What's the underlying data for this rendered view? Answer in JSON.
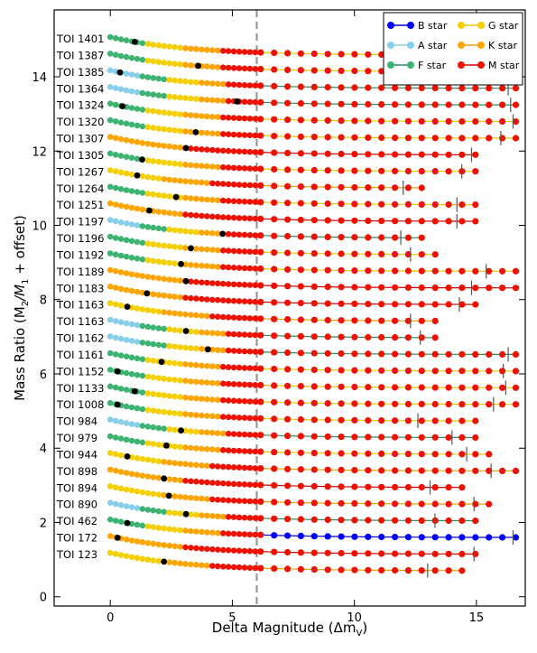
{
  "chart_data": {
    "type": "scatter",
    "xlabel": "Delta Magnitude (Δm",
    "xlabel_sub": "V",
    "xlabel_close": ")",
    "ylabel": "Mass Ratio (M",
    "ylabel_sub1": "2",
    "ylabel_mid": "/M",
    "ylabel_sub2": "1",
    "ylabel_close": " + offset)",
    "xlim": [
      -2.3,
      17
    ],
    "ylim": [
      -0.25,
      15.8
    ],
    "xticks": [
      0,
      5,
      10,
      15
    ],
    "yticks": [
      0,
      2,
      4,
      6,
      8,
      10,
      12,
      14
    ],
    "reference_line": {
      "x": 6,
      "style": "dashed",
      "color": "#999999"
    },
    "legend": {
      "placement": "top-right",
      "entries": [
        {
          "label": "B star",
          "color": "#0000ff",
          "line": "#0000cc"
        },
        {
          "label": "G star",
          "color": "#f5d000",
          "line": "#e8c800"
        },
        {
          "label": "A star",
          "color": "#87ceeb",
          "line": "#87ceeb"
        },
        {
          "label": "K star",
          "color": "#ffa500",
          "line": "#f0a000"
        },
        {
          "label": "F star",
          "color": "#3cb371",
          "line": "#2e8b57"
        },
        {
          "label": "M star",
          "color": "#ee1100",
          "line": "#cc0000"
        }
      ]
    },
    "spectral_colors": {
      "B": "#0000ff",
      "A": "#87ceeb",
      "F": "#3cb371",
      "G": "#f5d000",
      "K": "#ffa500",
      "M": "#ee1100"
    },
    "series": [
      {
        "name": "TOI 1401",
        "offset": 14.5,
        "start": "F",
        "x_end": 15.7,
        "x_mark": 14.2,
        "x_star": 1.0
      },
      {
        "name": "TOI 1387",
        "offset": 13.8,
        "start": "F",
        "x_end": 15.5,
        "x_mark": 14.8,
        "x_star": 3.6
      },
      {
        "name": "TOI 1385",
        "offset": 13.1,
        "start": "A",
        "x_end": 17.0,
        "x_mark": 16.3,
        "x_star": 0.4
      },
      {
        "name": "TOI 1364",
        "offset": 12.4,
        "start": "A",
        "x_end": 17.0,
        "x_mark": 16.4,
        "x_star": 5.2
      },
      {
        "name": "TOI 1324",
        "offset": 11.75,
        "start": "F",
        "x_end": 17.0,
        "x_mark": 16.5,
        "x_star": 0.5
      },
      {
        "name": "TOI 1320",
        "offset": 11.1,
        "start": "F",
        "x_end": 16.7,
        "x_mark": 16.0,
        "x_star": 3.5
      },
      {
        "name": "TOI 1307",
        "offset": 10.4,
        "start": "K",
        "x_end": 15.3,
        "x_mark": 14.8,
        "x_star": 3.1
      },
      {
        "name": "TOI 1305",
        "offset": 9.7,
        "start": "F",
        "x_end": 15.1,
        "x_mark": 14.4,
        "x_star": 1.3
      },
      {
        "name": "TOI 1267",
        "offset": 9.1,
        "start": "G",
        "x_end": 13.2,
        "x_mark": 12.0,
        "x_star": 1.1
      },
      {
        "name": "TOI 1264",
        "offset": 8.4,
        "start": "F",
        "x_end": 15.4,
        "x_mark": 14.2,
        "x_star": 2.7
      },
      {
        "name": "TOI 1251",
        "offset": 7.75,
        "start": "K",
        "x_end": 15.4,
        "x_mark": 14.2,
        "x_star": 1.6
      },
      {
        "name": "TOI 1197",
        "offset": 7.1,
        "start": "A",
        "x_end": 13.2,
        "x_mark": 11.9,
        "x_star": 4.6
      },
      {
        "name": "TOI 1196",
        "offset": 6.4,
        "start": "F",
        "x_end": 13.7,
        "x_mark": 12.3,
        "x_star": 3.3
      },
      {
        "name": "TOI 1192",
        "offset": 5.75,
        "start": "F",
        "x_end": 16.9,
        "x_mark": 15.4,
        "x_star": 2.9
      },
      {
        "name": "TOI 1189",
        "offset": 5.1,
        "start": "K",
        "x_end": 16.8,
        "x_mark": 14.8,
        "x_star": 3.1
      },
      {
        "name": "TOI 1183",
        "offset": 4.45,
        "start": "K",
        "x_end": 15.5,
        "x_mark": 14.3,
        "x_star": 1.5
      },
      {
        "name": "TOI 1163",
        "offset": 3.8,
        "start": "G",
        "x_end": 13.8,
        "x_mark": 12.3,
        "x_star": 0.7
      },
      {
        "name": "TOI 1163",
        "offset": 3.15,
        "start": "A",
        "x_end": 13.8,
        "x_mark": 12.7,
        "x_star": 3.1
      },
      {
        "name": "TOI 1162",
        "offset": 2.5,
        "start": "A",
        "x_end": 17.0,
        "x_mark": 16.3,
        "x_star": 4.0
      },
      {
        "name": "TOI 1161",
        "offset": 1.85,
        "start": "F",
        "x_end": 17.0,
        "x_mark": 16.1,
        "x_star": 2.1
      },
      {
        "name": "TOI 1152",
        "offset": 1.3,
        "start": "F",
        "x_end": 17.0,
        "x_mark": 16.2,
        "x_star": 0.3
      },
      {
        "name": "TOI 1133",
        "offset": 0.7,
        "start": "F",
        "x_end": 17.0,
        "x_mark": 15.7,
        "x_star": 1.0
      },
      {
        "name": "TOI 1008",
        "offset": 0.0,
        "start": "F",
        "x_end": 15.4,
        "x_mark": 12.6,
        "x_star": 0.3
      },
      {
        "name": "TOI 984",
        "offset": 0.0,
        "start": "A",
        "x_end": 15.5,
        "x_mark": 14.0,
        "x_star": 2.9
      },
      {
        "name": "TOI 979",
        "offset": 0.0,
        "start": "F",
        "x_end": 15.6,
        "x_mark": 14.6,
        "x_star": 2.3
      },
      {
        "name": "TOI 944",
        "offset": 0.0,
        "start": "G",
        "x_end": 17.0,
        "x_mark": 15.6,
        "x_star": 0.7
      },
      {
        "name": "TOI 898",
        "offset": 0.0,
        "start": "K",
        "x_end": 14.6,
        "x_mark": 13.1,
        "x_star": 2.2
      },
      {
        "name": "TOI 894",
        "offset": 0.0,
        "start": "G",
        "x_end": 15.8,
        "x_mark": 14.9,
        "x_star": 2.4
      },
      {
        "name": "TOI 890",
        "offset": 0.0,
        "start": "A",
        "x_end": 15.2,
        "x_mark": 13.3,
        "x_star": 3.1
      },
      {
        "name": "TOI 462",
        "offset": 0.0,
        "start": "F",
        "x_end": 16.9,
        "x_mark": 16.5,
        "x_star": 0.7,
        "tail": "B"
      },
      {
        "name": "TOI 172",
        "offset": 0.0,
        "start": "K",
        "x_end": 15.5,
        "x_mark": 14.9,
        "x_star": 0.3
      },
      {
        "name": "TOI 123",
        "offset": 0.0,
        "start": "G",
        "x_end": 14.5,
        "x_mark": 13.0,
        "x_star": 2.2
      }
    ],
    "extra_series": [
      {
        "name": "",
        "offset": 0.0,
        "start": "F",
        "x_end": 15.7,
        "x_mark": 14.2,
        "x_star": 4.6
      }
    ]
  }
}
